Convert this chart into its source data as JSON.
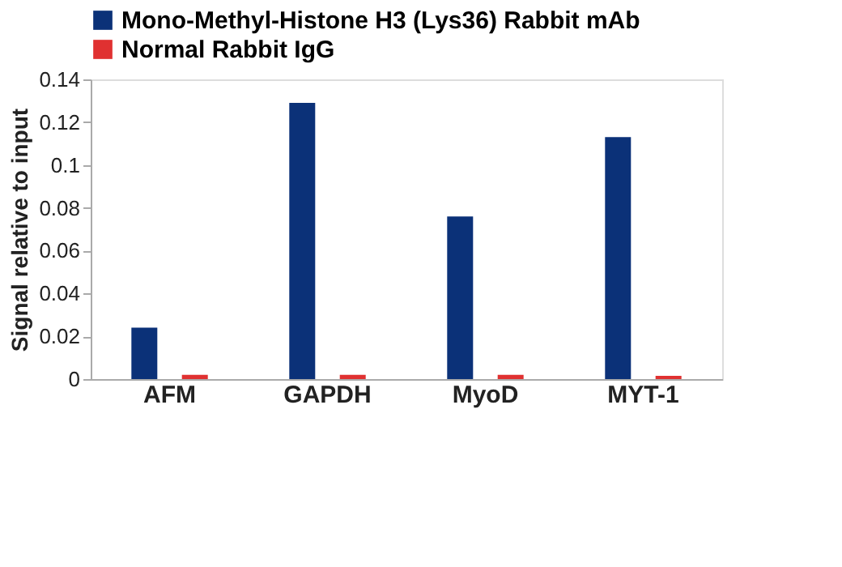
{
  "chart_data": {
    "type": "bar",
    "ylabel": "Signal relative to input",
    "categories": [
      "AFM",
      "GAPDH",
      "MyoD",
      "MYT-1"
    ],
    "series": [
      {
        "name": "Mono-Methyl-Histone H3 (Lys36) Rabbit mAb",
        "color": "#0b3178",
        "values": [
          0.024,
          0.129,
          0.076,
          0.113
        ]
      },
      {
        "name": "Normal Rabbit IgG",
        "color": "#e03131",
        "values": [
          0.002,
          0.002,
          0.002,
          0.0015
        ]
      }
    ],
    "ylim": [
      0,
      0.14
    ],
    "yticks": [
      0,
      0.02,
      0.04,
      0.06,
      0.08,
      0.1,
      0.12,
      0.14
    ],
    "grid": false,
    "legend": "top left"
  }
}
